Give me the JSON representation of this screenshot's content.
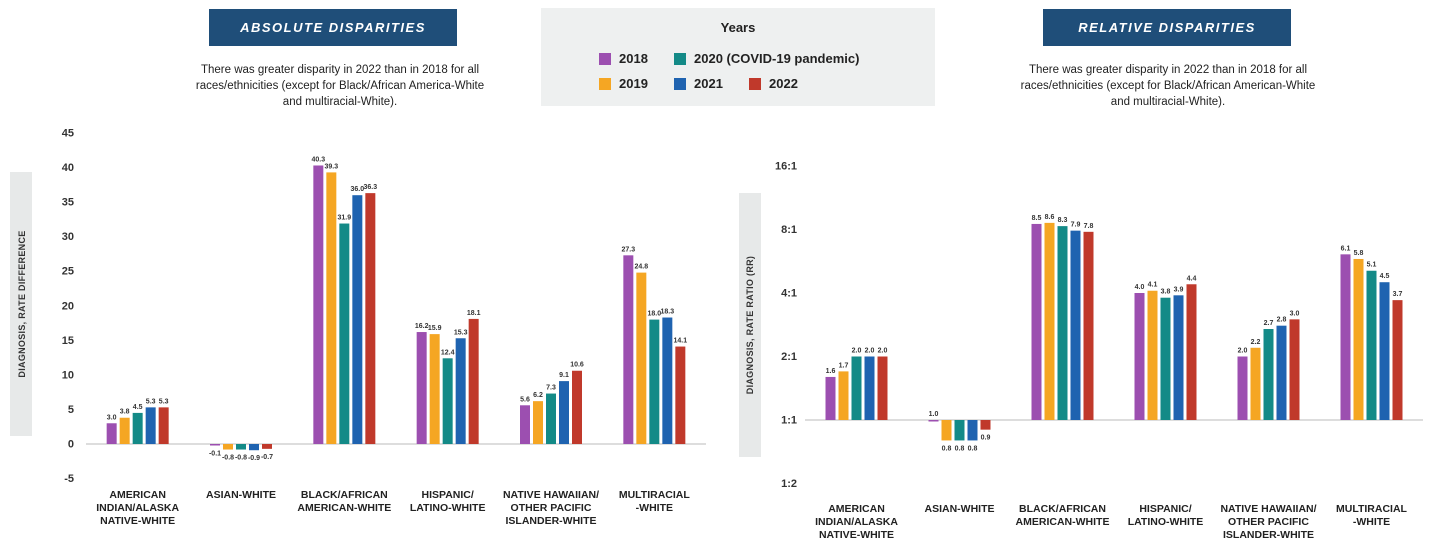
{
  "legend": {
    "title": "Years",
    "items": [
      {
        "label": "2018",
        "color": "#9c4fb0"
      },
      {
        "label": "2019",
        "color": "#f5a623"
      },
      {
        "label": "2020 (COVID-19 pandemic)",
        "color": "#138a87"
      },
      {
        "label": "2021",
        "color": "#1f63b0"
      },
      {
        "label": "2022",
        "color": "#c0392b"
      }
    ]
  },
  "chart_data": [
    {
      "type": "bar",
      "title": "ABSOLUTE DISPARITIES",
      "subtitle": [
        "There was greater disparity in 2022 than in 2018 for all",
        "races/ethnicities (except for Black/African America-White",
        "and multiracial-White)."
      ],
      "ylabel": "DIAGNOSIS, RATE DIFFERENCE",
      "ylim": [
        -5,
        45
      ],
      "yticks": [
        "-5",
        "0",
        "5",
        "10",
        "15",
        "20",
        "25",
        "30",
        "35",
        "40",
        "45"
      ],
      "categories": [
        [
          "AMERICAN",
          "INDIAN/ALASKA",
          "NATIVE-WHITE"
        ],
        [
          "ASIAN-WHITE"
        ],
        [
          "BLACK/AFRICAN",
          "AMERICAN-WHITE"
        ],
        [
          "HISPANIC/",
          "LATINO-WHITE"
        ],
        [
          "NATIVE HAWAIIAN/",
          "OTHER PACIFIC",
          "ISLANDER-WHITE"
        ],
        [
          "MULTIRACIAL",
          "-WHITE"
        ]
      ],
      "series": [
        {
          "name": "2018",
          "values": [
            3.0,
            -0.1,
            40.3,
            16.2,
            5.6,
            27.3
          ],
          "labels": [
            "3.0",
            "-0.1",
            "40.3",
            "16.2",
            "5.6",
            "27.3"
          ]
        },
        {
          "name": "2019",
          "values": [
            3.8,
            -0.8,
            39.3,
            15.9,
            6.2,
            24.8
          ],
          "labels": [
            "3.8",
            "-0.8",
            "39.3",
            "15.9",
            "6.2",
            "24.8"
          ]
        },
        {
          "name": "2020 (COVID-19 pandemic)",
          "values": [
            4.5,
            -0.8,
            31.9,
            12.4,
            7.3,
            18.0
          ],
          "labels": [
            "4.5",
            "-0.8",
            "31.9",
            "12.4",
            "7.3",
            "18.0"
          ]
        },
        {
          "name": "2021",
          "values": [
            5.3,
            -0.9,
            36.0,
            15.3,
            9.1,
            18.3
          ],
          "labels": [
            "5.3",
            "-0.9",
            "36.0",
            "15.3",
            "9.1",
            "18.3"
          ]
        },
        {
          "name": "2022",
          "values": [
            5.3,
            -0.7,
            36.3,
            18.1,
            10.6,
            14.1
          ],
          "labels": [
            "5.3",
            "-0.7",
            "36.3",
            "18.1",
            "10.6",
            "14.1"
          ]
        }
      ]
    },
    {
      "type": "bar",
      "title": "RELATIVE DISPARITIES",
      "subtitle": [
        "There was greater disparity in 2022 than in 2018 for all",
        "races/ethnicities (except for Black/African American-White",
        "and multiracial-White)."
      ],
      "ylabel": "DIAGNOSIS, RATE RATIO (RR)",
      "scale": "log2",
      "ylim": [
        0.5,
        16
      ],
      "yticks": [
        {
          "value": 16,
          "label": "16:1"
        },
        {
          "value": 8,
          "label": "8:1"
        },
        {
          "value": 4,
          "label": "4:1"
        },
        {
          "value": 2,
          "label": "2:1"
        },
        {
          "value": 1,
          "label": "1:1"
        },
        {
          "value": 0.5,
          "label": "1:2"
        }
      ],
      "categories": [
        [
          "AMERICAN",
          "INDIAN/ALASKA",
          "NATIVE-WHITE"
        ],
        [
          "ASIAN-WHITE"
        ],
        [
          "BLACK/AFRICAN",
          "AMERICAN-WHITE"
        ],
        [
          "HISPANIC/",
          "LATINO-WHITE"
        ],
        [
          "NATIVE HAWAIIAN/",
          "OTHER PACIFIC",
          "ISLANDER-WHITE"
        ],
        [
          "MULTIRACIAL",
          "-WHITE"
        ]
      ],
      "series": [
        {
          "name": "2018",
          "values": [
            1.6,
            1.0,
            8.5,
            4.0,
            2.0,
            6.1
          ],
          "labels": [
            "1.6",
            "1.0",
            "8.5",
            "4.0",
            "2.0",
            "6.1"
          ]
        },
        {
          "name": "2019",
          "values": [
            1.7,
            0.8,
            8.6,
            4.1,
            2.2,
            5.8
          ],
          "labels": [
            "1.7",
            "0.8",
            "8.6",
            "4.1",
            "2.2",
            "5.8"
          ]
        },
        {
          "name": "2020 (COVID-19 pandemic)",
          "values": [
            2.0,
            0.8,
            8.3,
            3.8,
            2.7,
            5.1
          ],
          "labels": [
            "2.0",
            "0.8",
            "8.3",
            "3.8",
            "2.7",
            "5.1"
          ]
        },
        {
          "name": "2021",
          "values": [
            2.0,
            0.8,
            7.9,
            3.9,
            2.8,
            4.5
          ],
          "labels": [
            "2.0",
            "0.8",
            "7.9",
            "3.9",
            "2.8",
            "4.5"
          ]
        },
        {
          "name": "2022",
          "values": [
            2.0,
            0.9,
            7.8,
            4.4,
            3.0,
            3.7
          ],
          "labels": [
            "2.0",
            "0.9",
            "7.8",
            "4.4",
            "3.0",
            "3.7"
          ]
        }
      ]
    }
  ]
}
